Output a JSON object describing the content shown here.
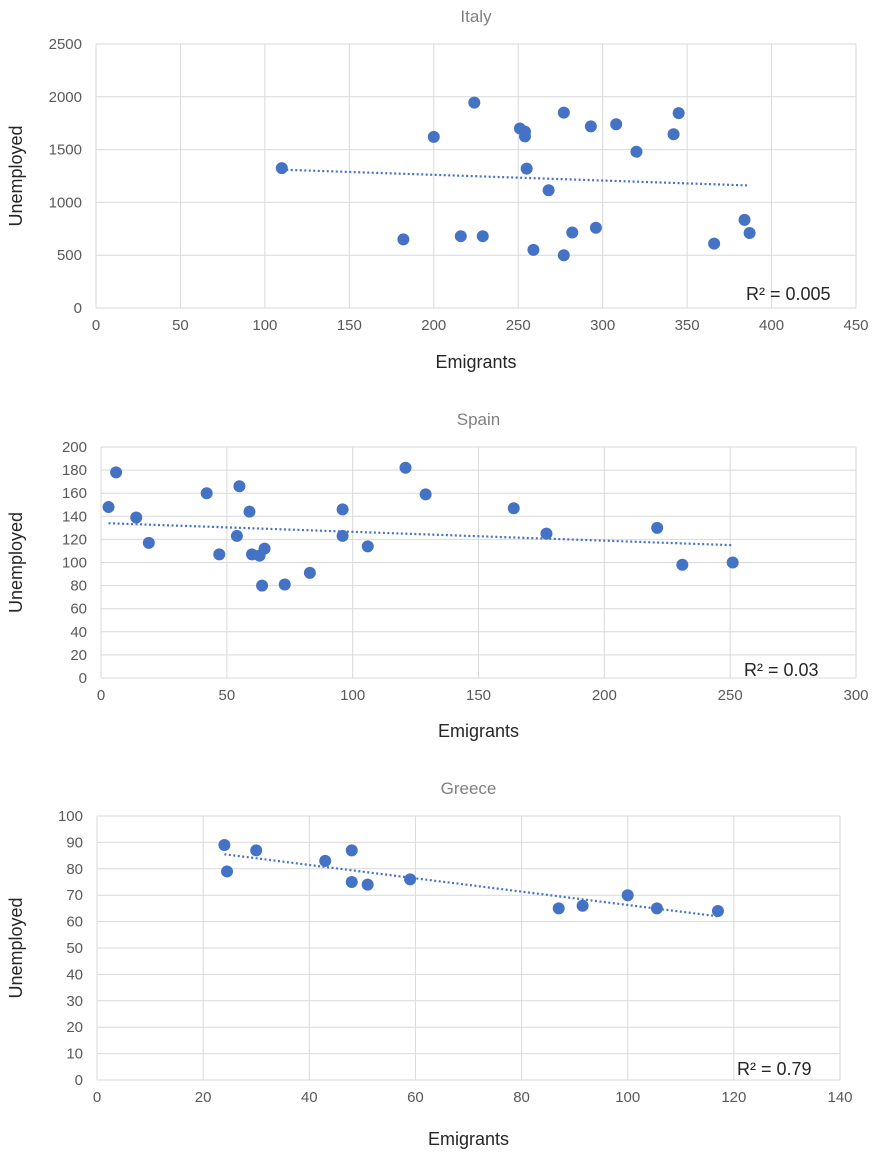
{
  "chart_data": [
    {
      "type": "scatter",
      "title": "Italy",
      "xlabel": "Emigrants",
      "ylabel": "Unemployed",
      "xlim": [
        0,
        450
      ],
      "ylim": [
        0,
        2500
      ],
      "xticks": [
        0,
        50,
        100,
        150,
        200,
        250,
        300,
        350,
        400,
        450
      ],
      "yticks": [
        0,
        500,
        1000,
        1500,
        2000,
        2500
      ],
      "grid": "vertical and horizontal",
      "color": "#4472c4",
      "r2_label": "R² = 0.005",
      "trendline": {
        "x": [
          110,
          387
        ],
        "y": [
          1310,
          1160
        ]
      },
      "points": [
        {
          "x": 110,
          "y": 1325
        },
        {
          "x": 182,
          "y": 650
        },
        {
          "x": 200,
          "y": 1620
        },
        {
          "x": 216,
          "y": 680
        },
        {
          "x": 224,
          "y": 1945
        },
        {
          "x": 229,
          "y": 680
        },
        {
          "x": 251,
          "y": 1700
        },
        {
          "x": 254,
          "y": 1670
        },
        {
          "x": 254,
          "y": 1625
        },
        {
          "x": 255,
          "y": 1320
        },
        {
          "x": 259,
          "y": 550
        },
        {
          "x": 268,
          "y": 1115
        },
        {
          "x": 277,
          "y": 1850
        },
        {
          "x": 277,
          "y": 500
        },
        {
          "x": 282,
          "y": 715
        },
        {
          "x": 293,
          "y": 1720
        },
        {
          "x": 296,
          "y": 760
        },
        {
          "x": 308,
          "y": 1740
        },
        {
          "x": 320,
          "y": 1480
        },
        {
          "x": 342,
          "y": 1645
        },
        {
          "x": 345,
          "y": 1845
        },
        {
          "x": 366,
          "y": 610
        },
        {
          "x": 384,
          "y": 835
        },
        {
          "x": 387,
          "y": 710
        }
      ]
    },
    {
      "type": "scatter",
      "title": "Spain",
      "xlabel": "Emigrants",
      "ylabel": "Unemployed",
      "xlim": [
        0,
        300
      ],
      "ylim": [
        0,
        200
      ],
      "xticks": [
        0,
        50,
        100,
        150,
        200,
        250,
        300
      ],
      "yticks": [
        0,
        20,
        40,
        60,
        80,
        100,
        120,
        140,
        160,
        180,
        200
      ],
      "grid": "vertical and horizontal",
      "color": "#4472c4",
      "r2_label": "R² = 0.03",
      "trendline": {
        "x": [
          3,
          251
        ],
        "y": [
          134,
          115
        ]
      },
      "points": [
        {
          "x": 3,
          "y": 148
        },
        {
          "x": 6,
          "y": 178
        },
        {
          "x": 14,
          "y": 139
        },
        {
          "x": 19,
          "y": 117
        },
        {
          "x": 42,
          "y": 160
        },
        {
          "x": 47,
          "y": 107
        },
        {
          "x": 54,
          "y": 123
        },
        {
          "x": 55,
          "y": 166
        },
        {
          "x": 59,
          "y": 144
        },
        {
          "x": 60,
          "y": 107
        },
        {
          "x": 63,
          "y": 106
        },
        {
          "x": 64,
          "y": 80
        },
        {
          "x": 65,
          "y": 112
        },
        {
          "x": 73,
          "y": 81
        },
        {
          "x": 83,
          "y": 91
        },
        {
          "x": 96,
          "y": 123
        },
        {
          "x": 96,
          "y": 146
        },
        {
          "x": 106,
          "y": 114
        },
        {
          "x": 121,
          "y": 182
        },
        {
          "x": 129,
          "y": 159
        },
        {
          "x": 164,
          "y": 147
        },
        {
          "x": 177,
          "y": 125
        },
        {
          "x": 221,
          "y": 130
        },
        {
          "x": 231,
          "y": 98
        },
        {
          "x": 251,
          "y": 100
        }
      ]
    },
    {
      "type": "scatter",
      "title": "Greece",
      "xlabel": "Emigrants",
      "ylabel": "Unemployed",
      "xlim": [
        0,
        140
      ],
      "ylim": [
        0,
        100
      ],
      "xticks": [
        0,
        20,
        40,
        60,
        80,
        100,
        120,
        140
      ],
      "yticks": [
        0,
        10,
        20,
        30,
        40,
        50,
        60,
        70,
        80,
        90,
        100
      ],
      "grid": "vertical and horizontal",
      "color": "#4472c4",
      "r2_label": "R² = 0.79",
      "trendline": {
        "x": [
          24,
          117
        ],
        "y": [
          85.5,
          62
        ]
      },
      "points": [
        {
          "x": 24,
          "y": 89
        },
        {
          "x": 24.5,
          "y": 79
        },
        {
          "x": 30,
          "y": 87
        },
        {
          "x": 43,
          "y": 83
        },
        {
          "x": 48,
          "y": 87
        },
        {
          "x": 48,
          "y": 75
        },
        {
          "x": 51,
          "y": 74
        },
        {
          "x": 59,
          "y": 76
        },
        {
          "x": 87,
          "y": 65
        },
        {
          "x": 91.5,
          "y": 66
        },
        {
          "x": 100,
          "y": 70
        },
        {
          "x": 105.5,
          "y": 65
        },
        {
          "x": 117,
          "y": 64
        }
      ]
    }
  ]
}
